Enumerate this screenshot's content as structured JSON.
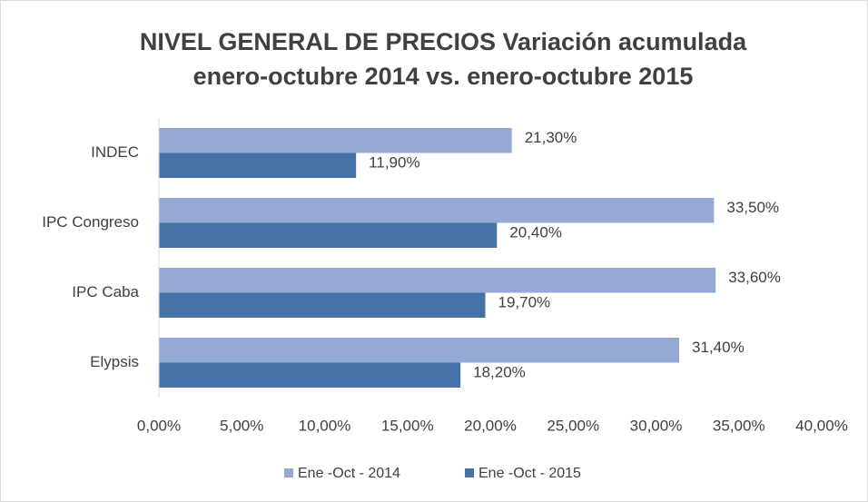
{
  "chart_data": {
    "type": "bar",
    "orientation": "horizontal",
    "title": [
      "NIVEL GENERAL DE PRECIOS Variación acumulada",
      "enero-octubre 2014 vs. enero-octubre 2015"
    ],
    "categories": [
      "INDEC",
      "IPC Congreso",
      "IPC Caba",
      "Elypsis"
    ],
    "series": [
      {
        "name": "Ene -Oct - 2014",
        "color": "#94a9d4",
        "values": [
          21.3,
          33.5,
          33.6,
          31.4
        ],
        "value_labels": [
          "21,30%",
          "33,50%",
          "33,60%",
          "31,40%"
        ]
      },
      {
        "name": "Ene -Oct - 2015",
        "color": "#4672a8",
        "values": [
          11.9,
          20.4,
          19.7,
          18.2
        ],
        "value_labels": [
          "11,90%",
          "20,40%",
          "19,70%",
          "18,20%"
        ]
      }
    ],
    "xlim": [
      0,
      40
    ],
    "xticks": [
      {
        "value": 0,
        "label": "0,00%"
      },
      {
        "value": 5,
        "label": "5,00%"
      },
      {
        "value": 10,
        "label": "10,00%"
      },
      {
        "value": 15,
        "label": "15,00%"
      },
      {
        "value": 20,
        "label": "20,00%"
      },
      {
        "value": 25,
        "label": "25,00%"
      },
      {
        "value": 30,
        "label": "30,00%"
      },
      {
        "value": 35,
        "label": "35,00%"
      },
      {
        "value": 40,
        "label": "40,00%"
      }
    ],
    "grid": false,
    "legend": "bottom"
  }
}
